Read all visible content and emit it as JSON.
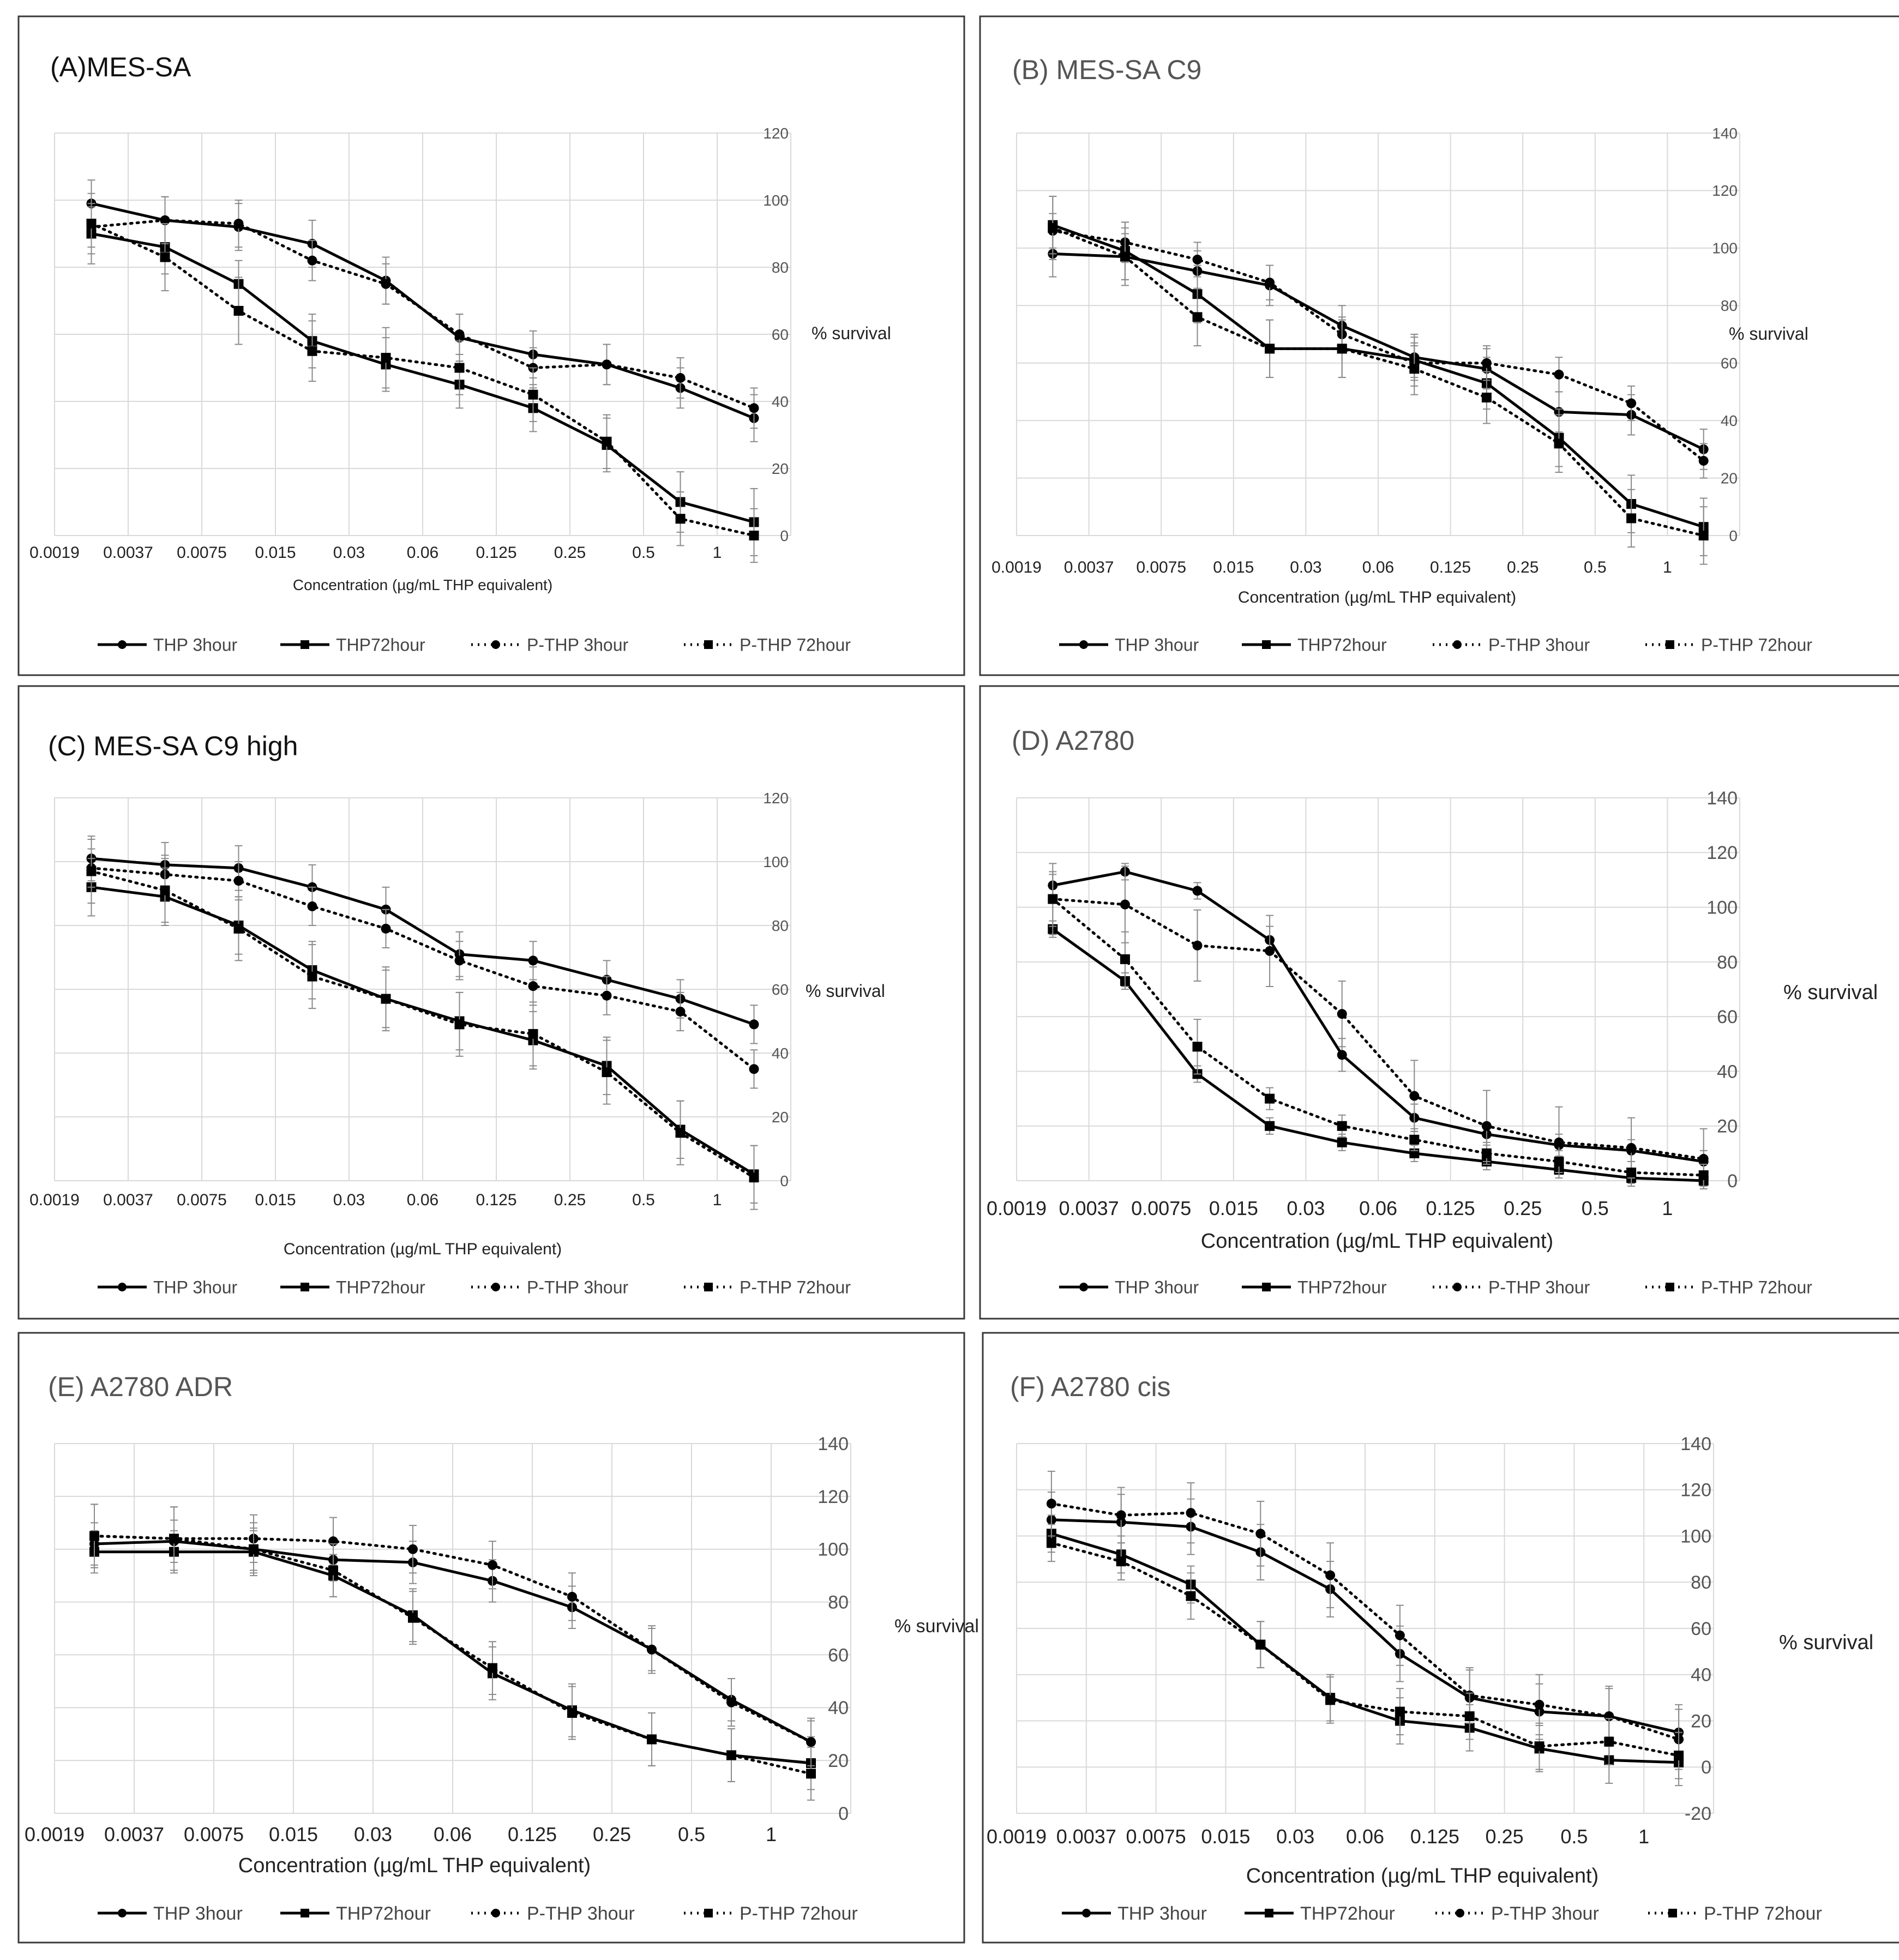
{
  "figure": {
    "panel_order": [
      "A",
      "B",
      "C",
      "D",
      "E",
      "F"
    ],
    "x_ticks": [
      "0.0019",
      "0.0037",
      "0.0075",
      "0.015",
      "0.03",
      "0.06",
      "0.125",
      "0.25",
      "0.5",
      "1"
    ],
    "y_axis_title": "% survival",
    "x_axis_title": "Concentration (µg/mL THP equivalent)",
    "legend": [
      "THP 3hour",
      "THP72hour",
      "P-THP 3hour",
      "P-THP 72hour"
    ]
  },
  "chart_data": [
    {
      "type": "line",
      "panel": "A",
      "title": "(A)MES-SA",
      "xlabel": "Concentration (µg/mL THP equivalent)",
      "ylabel": "% survival",
      "categories": [
        "0.0019",
        "0.0037",
        "0.0075",
        "0.015",
        "0.03",
        "0.06",
        "0.125",
        "0.25",
        "0.5",
        "1"
      ],
      "ylim": [
        0,
        120
      ],
      "yticks": [
        0,
        20,
        40,
        60,
        80,
        100,
        120
      ],
      "grid": true,
      "legend_position": "bottom",
      "series": [
        {
          "name": "THP 3hour",
          "values": [
            99,
            94,
            92,
            87,
            76,
            59,
            54,
            51,
            44,
            35
          ],
          "error": [
            7,
            7,
            7,
            7,
            7,
            7,
            7,
            6,
            6,
            7
          ]
        },
        {
          "name": "THP72hour",
          "values": [
            90,
            86,
            75,
            58,
            51,
            45,
            38,
            27,
            10,
            4
          ],
          "error": [
            9,
            8,
            7,
            8,
            8,
            7,
            7,
            8,
            9,
            10
          ]
        },
        {
          "name": "P-THP 3hour",
          "values": [
            92,
            94,
            93,
            82,
            75,
            60,
            50,
            51,
            47,
            38
          ],
          "error": [
            6,
            7,
            7,
            6,
            6,
            6,
            6,
            6,
            6,
            6
          ]
        },
        {
          "name": "P-THP 72hour",
          "values": [
            93,
            83,
            67,
            55,
            53,
            50,
            42,
            28,
            5,
            0
          ],
          "error": [
            9,
            10,
            10,
            9,
            9,
            8,
            8,
            8,
            8,
            8
          ]
        }
      ]
    },
    {
      "type": "line",
      "panel": "B",
      "title": "(B) MES-SA C9",
      "xlabel": "Concentration (µg/mL THP equivalent)",
      "ylabel": "% survival",
      "categories": [
        "0.0019",
        "0.0037",
        "0.0075",
        "0.015",
        "0.03",
        "0.06",
        "0.125",
        "0.25",
        "0.5",
        "1"
      ],
      "ylim": [
        0,
        140
      ],
      "yticks": [
        0,
        20,
        40,
        60,
        80,
        100,
        120,
        140
      ],
      "grid": true,
      "legend_position": "bottom",
      "series": [
        {
          "name": "THP 3hour",
          "values": [
            98,
            97,
            92,
            87,
            73,
            62,
            58,
            43,
            42,
            30
          ],
          "error": [
            8,
            8,
            7,
            7,
            7,
            7,
            7,
            7,
            7,
            7
          ]
        },
        {
          "name": "THP72hour",
          "values": [
            108,
            99,
            84,
            65,
            65,
            61,
            53,
            34,
            11,
            3
          ],
          "error": [
            10,
            10,
            10,
            10,
            10,
            9,
            9,
            10,
            10,
            10
          ]
        },
        {
          "name": "P-THP 3hour",
          "values": [
            106,
            102,
            96,
            88,
            70,
            60,
            60,
            56,
            46,
            26
          ],
          "error": [
            6,
            7,
            6,
            6,
            6,
            6,
            6,
            6,
            6,
            6
          ]
        },
        {
          "name": "P-THP 72hour",
          "values": [
            107,
            97,
            76,
            65,
            65,
            58,
            48,
            32,
            6,
            0
          ],
          "error": [
            11,
            10,
            10,
            10,
            10,
            9,
            9,
            10,
            10,
            10
          ]
        }
      ]
    },
    {
      "type": "line",
      "panel": "C",
      "title": "(C) MES-SA C9 high",
      "xlabel": "Concentration (µg/mL THP equivalent)",
      "ylabel": "% survival",
      "categories": [
        "0.0019",
        "0.0037",
        "0.0075",
        "0.015",
        "0.03",
        "0.06",
        "0.125",
        "0.25",
        "0.5",
        "1"
      ],
      "ylim": [
        0,
        120
      ],
      "yticks": [
        0,
        20,
        40,
        60,
        80,
        100,
        120
      ],
      "grid": true,
      "legend_position": "bottom",
      "series": [
        {
          "name": "THP 3hour",
          "values": [
            101,
            99,
            98,
            92,
            85,
            71,
            69,
            63,
            57,
            49
          ],
          "error": [
            7,
            7,
            7,
            7,
            7,
            7,
            6,
            6,
            6,
            6
          ]
        },
        {
          "name": "THP72hour",
          "values": [
            92,
            89,
            80,
            66,
            57,
            50,
            44,
            36,
            16,
            2
          ],
          "error": [
            9,
            9,
            9,
            9,
            9,
            9,
            9,
            9,
            9,
            9
          ]
        },
        {
          "name": "P-THP 3hour",
          "values": [
            98,
            96,
            94,
            86,
            79,
            69,
            61,
            58,
            53,
            35
          ],
          "error": [
            6,
            6,
            6,
            6,
            6,
            6,
            6,
            6,
            6,
            6
          ]
        },
        {
          "name": "P-THP 72hour",
          "values": [
            97,
            91,
            79,
            64,
            57,
            49,
            46,
            34,
            15,
            1
          ],
          "error": [
            10,
            10,
            10,
            10,
            10,
            10,
            10,
            10,
            10,
            10
          ]
        }
      ]
    },
    {
      "type": "line",
      "panel": "D",
      "title": "(D) A2780",
      "xlabel": "Concentration (µg/mL THP equivalent)",
      "ylabel": "% survival",
      "categories": [
        "0.0019",
        "0.0037",
        "0.0075",
        "0.015",
        "0.03",
        "0.06",
        "0.125",
        "0.25",
        "0.5",
        "1"
      ],
      "ylim": [
        0,
        140
      ],
      "yticks": [
        0,
        20,
        40,
        60,
        80,
        100,
        120,
        140
      ],
      "grid": true,
      "legend_position": "bottom",
      "series": [
        {
          "name": "THP 3hour",
          "values": [
            108,
            113,
            106,
            88,
            46,
            23,
            17,
            13,
            11,
            7
          ],
          "error": [
            4,
            3,
            3,
            5,
            6,
            5,
            4,
            4,
            4,
            4
          ]
        },
        {
          "name": "THP72hour",
          "values": [
            92,
            73,
            39,
            20,
            14,
            10,
            7,
            4,
            1,
            0
          ],
          "error": [
            3,
            3,
            3,
            3,
            3,
            3,
            3,
            3,
            3,
            3
          ]
        },
        {
          "name": "P-THP 3hour",
          "values": [
            103,
            101,
            86,
            84,
            61,
            31,
            20,
            14,
            12,
            8
          ],
          "error": [
            13,
            14,
            13,
            13,
            12,
            13,
            13,
            13,
            11,
            11
          ]
        },
        {
          "name": "P-THP 72hour",
          "values": [
            103,
            81,
            49,
            30,
            20,
            15,
            10,
            7,
            3,
            2
          ],
          "error": [
            10,
            10,
            10,
            4,
            4,
            4,
            4,
            4,
            4,
            4
          ]
        }
      ]
    },
    {
      "type": "line",
      "panel": "E",
      "title": "(E) A2780 ADR",
      "xlabel": "Concentration (µg/mL THP equivalent)",
      "ylabel": "% survival",
      "categories": [
        "0.0019",
        "0.0037",
        "0.0075",
        "0.015",
        "0.03",
        "0.06",
        "0.125",
        "0.25",
        "0.5",
        "1"
      ],
      "ylim": [
        0,
        140
      ],
      "yticks": [
        0,
        20,
        40,
        60,
        80,
        100,
        120,
        140
      ],
      "grid": true,
      "legend_position": "bottom",
      "series": [
        {
          "name": "THP 3hour",
          "values": [
            102,
            103,
            100,
            96,
            95,
            88,
            78,
            62,
            43,
            27
          ],
          "error": [
            8,
            8,
            8,
            8,
            8,
            8,
            8,
            8,
            8,
            8
          ]
        },
        {
          "name": "THP72hour",
          "values": [
            99,
            99,
            99,
            90,
            75,
            53,
            39,
            28,
            22,
            19
          ],
          "error": [
            8,
            8,
            8,
            8,
            10,
            10,
            10,
            10,
            10,
            10
          ]
        },
        {
          "name": "P-THP 3hour",
          "values": [
            105,
            104,
            104,
            103,
            100,
            94,
            82,
            62,
            42,
            27
          ],
          "error": [
            12,
            12,
            9,
            9,
            9,
            9,
            9,
            9,
            9,
            9
          ]
        },
        {
          "name": "P-THP 72hour",
          "values": [
            105,
            104,
            100,
            92,
            74,
            55,
            38,
            28,
            22,
            15
          ],
          "error": [
            12,
            12,
            10,
            10,
            10,
            10,
            10,
            10,
            10,
            10
          ]
        }
      ]
    },
    {
      "type": "line",
      "panel": "F",
      "title": "(F) A2780 cis",
      "xlabel": "Concentration (µg/mL THP equivalent)",
      "ylabel": "% survival",
      "categories": [
        "0.0019",
        "0.0037",
        "0.0075",
        "0.015",
        "0.03",
        "0.06",
        "0.125",
        "0.25",
        "0.5",
        "1"
      ],
      "ylim": [
        -20,
        140
      ],
      "yticks": [
        -20,
        0,
        20,
        40,
        60,
        80,
        100,
        120,
        140
      ],
      "grid": true,
      "legend_position": "bottom",
      "series": [
        {
          "name": "THP 3hour",
          "values": [
            107,
            106,
            104,
            93,
            77,
            49,
            30,
            24,
            22,
            15
          ],
          "error": [
            12,
            12,
            12,
            12,
            12,
            12,
            12,
            12,
            12,
            12
          ]
        },
        {
          "name": "THP72hour",
          "values": [
            101,
            92,
            79,
            53,
            30,
            20,
            17,
            8,
            3,
            2
          ],
          "error": [
            8,
            8,
            8,
            10,
            10,
            10,
            10,
            10,
            10,
            10
          ]
        },
        {
          "name": "P-THP 3hour",
          "values": [
            114,
            109,
            110,
            101,
            83,
            57,
            31,
            27,
            22,
            12
          ],
          "error": [
            14,
            12,
            13,
            14,
            14,
            13,
            12,
            13,
            13,
            13
          ]
        },
        {
          "name": "P-THP 72hour",
          "values": [
            97,
            89,
            74,
            53,
            29,
            24,
            22,
            9,
            11,
            5
          ],
          "error": [
            8,
            8,
            10,
            10,
            10,
            10,
            10,
            10,
            10,
            10
          ]
        }
      ]
    }
  ]
}
